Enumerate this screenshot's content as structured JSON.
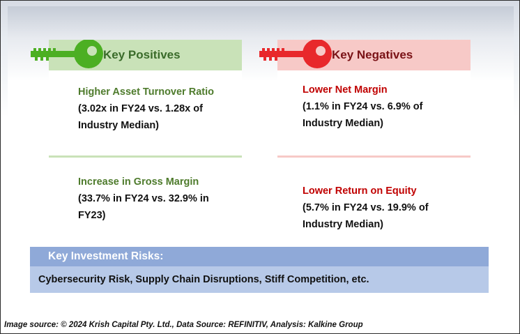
{
  "positives": {
    "header": "Key Positives",
    "items": [
      {
        "title": "Higher Asset Turnover Ratio",
        "detail": "(3.02x in FY24 vs. 1.28x of Industry Median)"
      },
      {
        "title": "Increase in Gross Margin",
        "detail": "(33.7% in FY24 vs. 32.9% in FY23)"
      }
    ]
  },
  "negatives": {
    "header": "Key Negatives",
    "items": [
      {
        "title": "Lower Net Margin",
        "detail": "(1.1% in FY24 vs. 6.9% of Industry Median)"
      },
      {
        "title": "Lower Return on Equity",
        "detail": "(5.7% in FY24 vs. 19.9% of Industry Median)"
      }
    ]
  },
  "risks": {
    "header": "Key Investment Risks:",
    "text": "Cybersecurity Risk, Supply Chain Disruptions, Stiff Competition, etc."
  },
  "footer": {
    "source": "Image source: © 2024 Krish Capital Pty. Ltd., Data Source: REFINITIV, Analysis: Kalkine Group"
  },
  "colors": {
    "positive_header_bg": "#c9e2b8",
    "positive_key": "#4caf23",
    "positive_title": "#4e7b2c",
    "negative_header_bg": "#f7c9c7",
    "negative_key": "#e8282b",
    "negative_title": "#c00000",
    "risks_header_bg": "#8fa9d8",
    "risks_body_bg": "#b7c9e8"
  },
  "icons": [
    "green-key-icon",
    "red-key-icon"
  ]
}
